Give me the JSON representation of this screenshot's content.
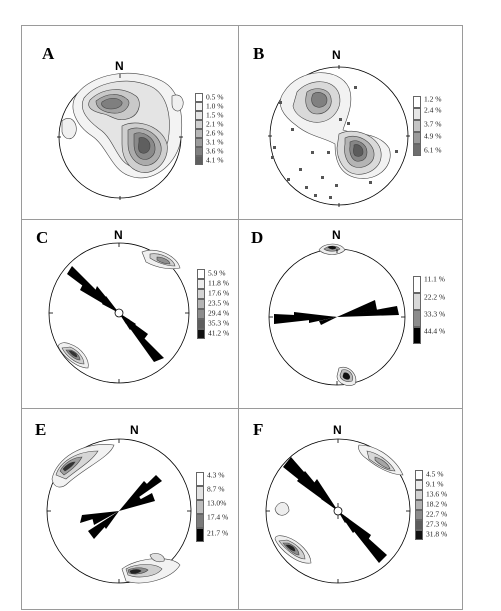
{
  "north_label": "N",
  "panels": [
    {
      "id": "A",
      "label": "A",
      "north": "N",
      "legend": [
        "0.5 %",
        "1.0 %",
        "1.5 %",
        "2.1 %",
        "2.6 %",
        "3.1 %",
        "3.6 %",
        "4.1 %"
      ]
    },
    {
      "id": "B",
      "label": "B",
      "north": "N",
      "legend": [
        "1.2 %",
        "2.4 %",
        "3.7 %",
        "4.9 %",
        "6.1 %"
      ]
    },
    {
      "id": "C",
      "label": "C",
      "north": "N",
      "legend": [
        "5.9 %",
        "11.8 %",
        "17.6 %",
        "23.5 %",
        "29.4 %",
        "35.3 %",
        "41.2 %"
      ]
    },
    {
      "id": "D",
      "label": "D",
      "north": "N",
      "legend": [
        "11.1 %",
        "22.2 %",
        "33.3 %",
        "44.4 %"
      ]
    },
    {
      "id": "E",
      "label": "E",
      "north": "N",
      "legend": [
        "4.3 %",
        "8.7 %",
        "13.0%",
        "17.4 %",
        "21.7 %"
      ]
    },
    {
      "id": "F",
      "label": "F",
      "north": "N",
      "legend": [
        "4.5 %",
        "9.1 %",
        "13.6 %",
        "18.2 %",
        "22.7 %",
        "27.3 %",
        "31.8 %"
      ]
    }
  ],
  "colors": {
    "frame": "#9a9a9a",
    "ink": "#000000",
    "contour_light": "#eeeeee",
    "contour_mid": "#bdbdbd",
    "contour_dark": "#6e6e6e",
    "rose": "#000000"
  }
}
